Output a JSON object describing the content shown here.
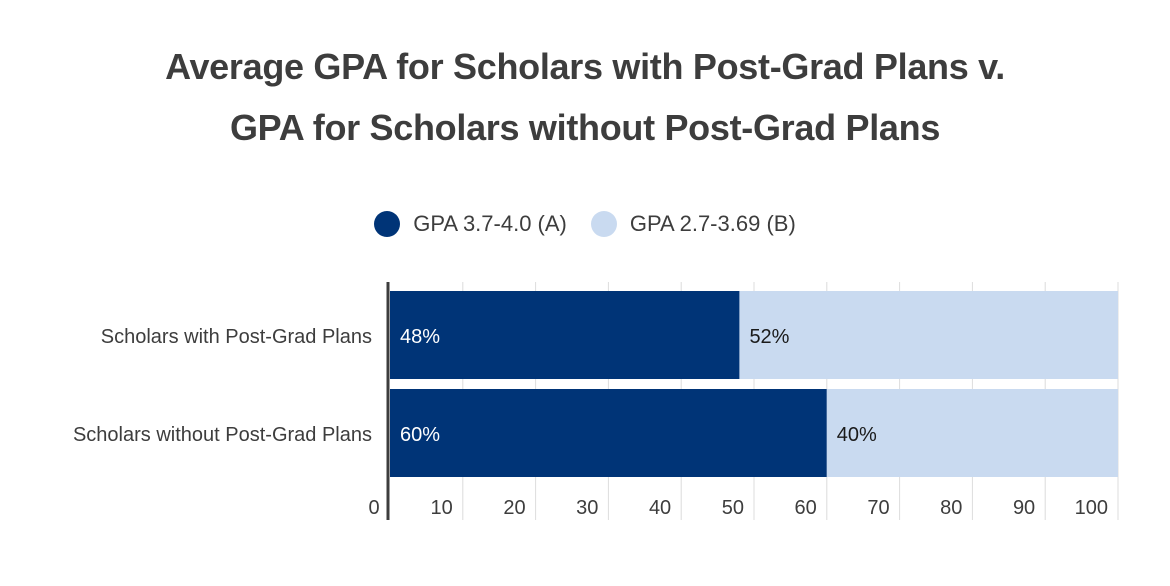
{
  "chart_data": {
    "type": "bar",
    "orientation": "horizontal",
    "stacked": true,
    "title_lines": [
      "Average GPA for Scholars with Post-Grad Plans v.",
      "GPA for Scholars without Post-Grad Plans"
    ],
    "categories": [
      "Scholars with Post-Grad Plans",
      "Scholars without Post-Grad Plans"
    ],
    "series": [
      {
        "name": "GPA 3.7-4.0 (A)",
        "values": [
          48,
          60
        ],
        "labels": [
          "48%",
          "60%"
        ],
        "color": "#003477",
        "label_color": "#ffffff"
      },
      {
        "name": "GPA 2.7-3.69 (B)",
        "values": [
          52,
          40
        ],
        "labels": [
          "52%",
          "40%"
        ],
        "color": "#c9daf0",
        "label_color": "#1a1a1a"
      }
    ],
    "xticks": [
      0,
      10,
      20,
      30,
      40,
      50,
      60,
      70,
      80,
      90,
      100
    ],
    "xtick_labels": [
      "0",
      "10",
      "20",
      "30",
      "40",
      "50",
      "60",
      "70",
      "80",
      "90",
      "100"
    ],
    "xlim": [
      0,
      100
    ],
    "grid": true,
    "legend_position": "top-center"
  }
}
